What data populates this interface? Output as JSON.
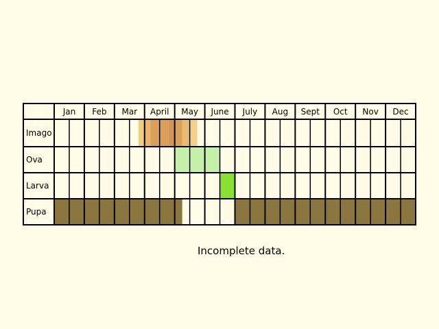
{
  "months": [
    "Jan",
    "Feb",
    "Mar",
    "April",
    "May",
    "June",
    "July",
    "Aug",
    "Sept",
    "Oct",
    "Nov",
    "Dec"
  ],
  "stages": [
    {
      "name": "Imago",
      "periods": [
        {
          "start": 3.8,
          "end": 3.98,
          "color": "#f2cb85"
        },
        {
          "start": 3.98,
          "end": 4.2,
          "color": "#e7b56c"
        },
        {
          "start": 4.2,
          "end": 4.8,
          "color": "#d9a05a"
        },
        {
          "start": 4.8,
          "end": 5.0,
          "color": "#d4955a"
        },
        {
          "start": 5.0,
          "end": 5.25,
          "color": "#d9a05a"
        },
        {
          "start": 5.25,
          "end": 5.5,
          "color": "#e8ba72"
        },
        {
          "start": 5.5,
          "end": 5.75,
          "color": "#f5d08a"
        }
      ]
    },
    {
      "name": "Ova",
      "periods": [
        {
          "start": 5.0,
          "end": 6.0,
          "color": "#c5f0aa"
        },
        {
          "start": 6.0,
          "end": 6.5,
          "color": "#c5f0aa"
        }
      ]
    },
    {
      "name": "Larva",
      "periods": [
        {
          "start": 6.5,
          "end": 7.0,
          "color": "#88e030"
        }
      ]
    },
    {
      "name": "Pupa",
      "periods": [
        {
          "start": 1.0,
          "end": 5.25,
          "color": "#8b7640"
        },
        {
          "start": 7.0,
          "end": 13.0,
          "color": "#8b7640"
        }
      ]
    }
  ],
  "note": "Incomplete data."
}
